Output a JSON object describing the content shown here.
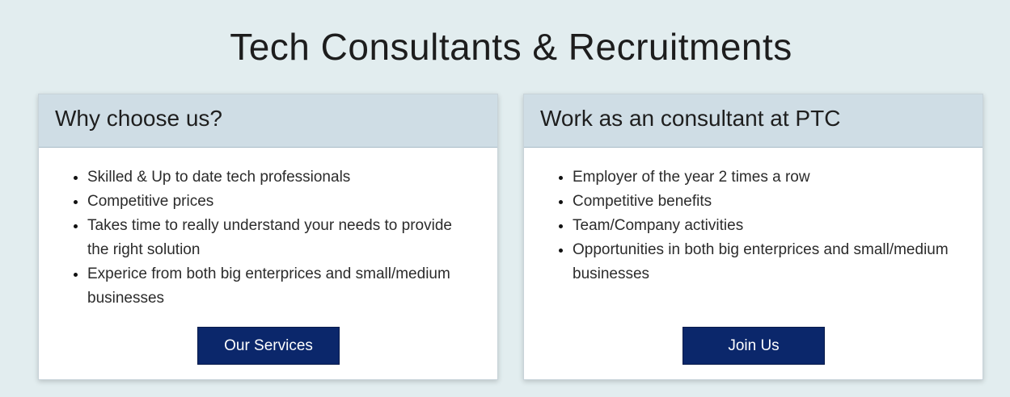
{
  "page": {
    "title": "Tech Consultants & Recruitments"
  },
  "colors": {
    "background": "#e2edef",
    "card_header": "#cfdde5",
    "button": "#0b276b"
  },
  "cards": [
    {
      "title": "Why choose us?",
      "items": [
        "Skilled & Up to date tech professionals",
        "Competitive prices",
        "Takes time to really understand your needs to provide the right solution",
        "Experice from both big enterprices and small/medium businesses"
      ],
      "button_label": "Our Services"
    },
    {
      "title": "Work as an consultant at PTC",
      "items": [
        "Employer of the year 2 times a row",
        "Competitive benefits",
        "Team/Company activities",
        "Opportunities in both big enterprices and small/medium businesses"
      ],
      "button_label": "Join Us"
    }
  ]
}
